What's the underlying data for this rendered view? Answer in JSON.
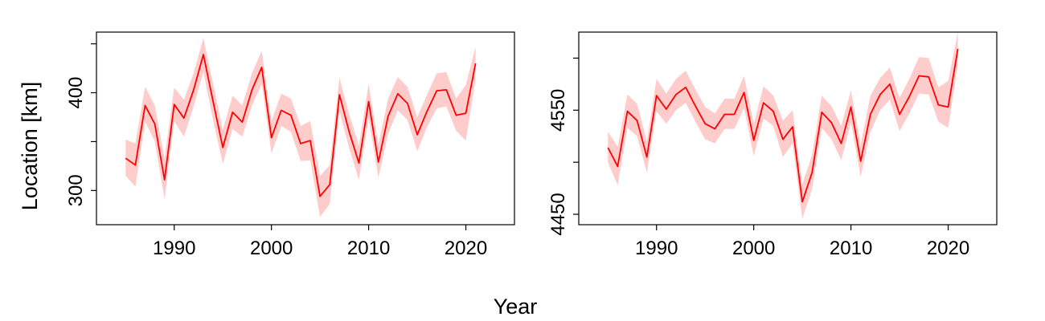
{
  "figure": {
    "ylabel": "Location [km]",
    "xlabel": "Year"
  },
  "colors": {
    "line": "#ff0000",
    "band": "#ffcccc",
    "axis": "#000000"
  },
  "chart_data": [
    {
      "type": "line",
      "panel": "left",
      "xlim": [
        1982,
        2025
      ],
      "ylim": [
        265,
        462
      ],
      "xticks": [
        1990,
        2000,
        2010,
        2020
      ],
      "yticks": [
        300,
        400
      ],
      "yticks_minor": [
        350,
        450
      ],
      "x": [
        1985,
        1986,
        1987,
        1988,
        1989,
        1990,
        1991,
        1992,
        1993,
        1994,
        1995,
        1996,
        1997,
        1998,
        1999,
        2000,
        2001,
        2002,
        2003,
        2004,
        2005,
        2006,
        2007,
        2008,
        2009,
        2010,
        2011,
        2012,
        2013,
        2014,
        2015,
        2016,
        2017,
        2018,
        2019,
        2020,
        2021
      ],
      "series": [
        {
          "values": [
            333,
            326,
            387,
            368,
            311,
            388,
            374,
            403,
            439,
            391,
            344,
            380,
            370,
            403,
            426,
            354,
            382,
            377,
            348,
            351,
            294,
            306,
            398,
            360,
            328,
            391,
            329,
            376,
            399,
            389,
            357,
            381,
            402,
            403,
            377,
            379,
            430
          ],
          "lower": [
            315,
            304,
            370,
            350,
            291,
            371,
            355,
            386,
            421,
            372,
            327,
            363,
            355,
            387,
            409,
            338,
            366,
            360,
            330,
            331,
            273,
            286,
            381,
            343,
            311,
            374,
            313,
            358,
            382,
            372,
            340,
            365,
            384,
            386,
            361,
            351,
            414
          ],
          "upper": [
            352,
            348,
            406,
            387,
            333,
            405,
            393,
            420,
            456,
            409,
            362,
            397,
            387,
            420,
            443,
            371,
            399,
            394,
            366,
            371,
            315,
            326,
            415,
            378,
            346,
            409,
            347,
            394,
            416,
            406,
            375,
            398,
            420,
            421,
            394,
            408,
            447
          ]
        }
      ]
    },
    {
      "type": "line",
      "panel": "right",
      "xlim": [
        1982,
        2025
      ],
      "ylim": [
        4440,
        4625
      ],
      "xticks": [
        1990,
        2000,
        2010,
        2020
      ],
      "yticks": [
        4450,
        4550
      ],
      "yticks_minor": [
        4500,
        4600
      ],
      "x": [
        1985,
        1986,
        1987,
        1988,
        1989,
        1990,
        1991,
        1992,
        1993,
        1994,
        1995,
        1996,
        1997,
        1998,
        1999,
        2000,
        2001,
        2002,
        2003,
        2004,
        2005,
        2006,
        2007,
        2008,
        2009,
        2010,
        2011,
        2012,
        2013,
        2014,
        2015,
        2016,
        2017,
        2018,
        2019,
        2020,
        2021
      ],
      "series": [
        {
          "values": [
            4514,
            4496,
            4549,
            4540,
            4505,
            4564,
            4551,
            4565,
            4572,
            4554,
            4537,
            4532,
            4546,
            4546,
            4567,
            4521,
            4557,
            4549,
            4522,
            4534,
            4462,
            4490,
            4548,
            4538,
            4518,
            4553,
            4501,
            4546,
            4565,
            4575,
            4546,
            4563,
            4583,
            4582,
            4555,
            4553,
            4609
          ],
          "lower": [
            4500,
            4478,
            4533,
            4525,
            4490,
            4549,
            4537,
            4550,
            4557,
            4539,
            4522,
            4518,
            4532,
            4532,
            4552,
            4506,
            4542,
            4535,
            4505,
            4518,
            4446,
            4474,
            4533,
            4522,
            4502,
            4538,
            4486,
            4529,
            4550,
            4560,
            4530,
            4547,
            4566,
            4565,
            4539,
            4533,
            4594
          ],
          "upper": [
            4529,
            4515,
            4565,
            4556,
            4520,
            4580,
            4566,
            4580,
            4588,
            4570,
            4553,
            4547,
            4561,
            4561,
            4583,
            4537,
            4573,
            4564,
            4540,
            4550,
            4479,
            4507,
            4564,
            4554,
            4535,
            4569,
            4517,
            4564,
            4581,
            4591,
            4562,
            4580,
            4601,
            4600,
            4572,
            4578,
            4625
          ]
        }
      ]
    }
  ]
}
